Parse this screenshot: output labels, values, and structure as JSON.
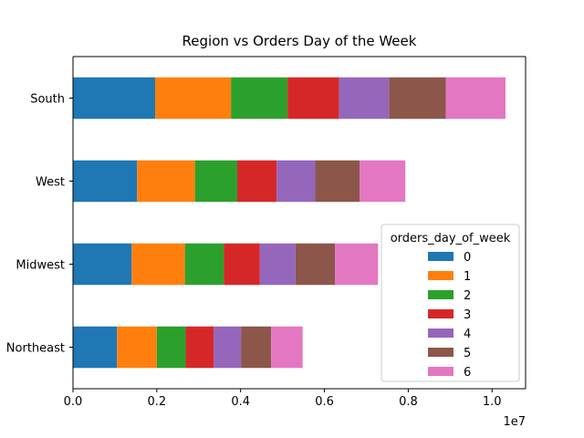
{
  "chart_data": {
    "type": "bar",
    "orientation": "horizontal",
    "stacked": true,
    "title": "Region vs Orders Day of the Week",
    "xlabel": "",
    "ylabel": "",
    "x_multiplier_label": "1e7",
    "xlim": [
      0,
      10800000
    ],
    "x_ticks": [
      0,
      2000000,
      4000000,
      6000000,
      8000000,
      10000000
    ],
    "x_tick_labels": [
      "0.0",
      "0.2",
      "0.4",
      "0.6",
      "0.8",
      "1.0"
    ],
    "categories": [
      "Northeast",
      "Midwest",
      "West",
      "South"
    ],
    "series": [
      {
        "name": "0",
        "color": "#1f77b4",
        "values": [
          1050000,
          1400000,
          1530000,
          1960000
        ]
      },
      {
        "name": "1",
        "color": "#ff7f0e",
        "values": [
          950000,
          1270000,
          1380000,
          1810000
        ]
      },
      {
        "name": "2",
        "color": "#2ca02c",
        "values": [
          690000,
          930000,
          1010000,
          1350000
        ]
      },
      {
        "name": "3",
        "color": "#d62728",
        "values": [
          670000,
          860000,
          940000,
          1230000
        ]
      },
      {
        "name": "4",
        "color": "#9467bd",
        "values": [
          650000,
          850000,
          920000,
          1190000
        ]
      },
      {
        "name": "5",
        "color": "#8c564b",
        "values": [
          720000,
          940000,
          1060000,
          1360000
        ]
      },
      {
        "name": "6",
        "color": "#e377c2",
        "values": [
          750000,
          1030000,
          1090000,
          1420000
        ]
      }
    ],
    "legend": {
      "title": "orders_day_of_week",
      "placement": "center-right"
    },
    "grid": false
  }
}
